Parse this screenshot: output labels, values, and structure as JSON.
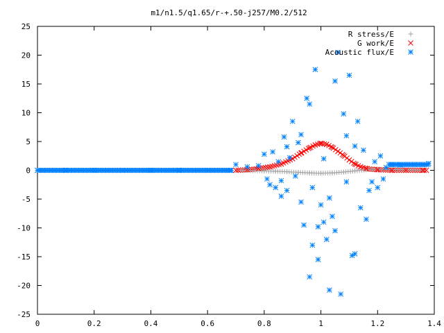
{
  "chart_data": {
    "type": "scatter",
    "title": "m1/n1.5/q1.65/r-+.50-j257/M0.2/512",
    "xlabel": "",
    "ylabel": "",
    "xlim": [
      0,
      1.4
    ],
    "ylim": [
      -25,
      25
    ],
    "x_ticks": [
      "0",
      "0.2",
      "0.4",
      "0.6",
      "0.8",
      "1",
      "1.2",
      "1.4"
    ],
    "y_ticks": [
      "25",
      "20",
      "15",
      "10",
      "5",
      "0",
      "-5",
      "-10",
      "-15",
      "-20",
      "-25"
    ],
    "grid": false,
    "legend_position": "top-right",
    "series": [
      {
        "name": "R stress/E",
        "marker": "plus",
        "color": "#a0a0a0",
        "points": [
          [
            0.72,
            0.0
          ],
          [
            0.76,
            -0.05
          ],
          [
            0.8,
            -0.1
          ],
          [
            0.84,
            -0.15
          ],
          [
            0.88,
            -0.25
          ],
          [
            0.92,
            -0.35
          ],
          [
            0.96,
            -0.45
          ],
          [
            1.0,
            -0.5
          ],
          [
            1.04,
            -0.45
          ],
          [
            1.08,
            -0.3
          ],
          [
            1.12,
            -0.1
          ],
          [
            1.16,
            0.1
          ],
          [
            1.2,
            0.2
          ],
          [
            1.24,
            0.15
          ],
          [
            1.28,
            0.1
          ],
          [
            1.32,
            0.05
          ],
          [
            1.36,
            0.0
          ]
        ]
      },
      {
        "name": "G work/E",
        "marker": "cross",
        "color": "#ff0000",
        "points": [
          [
            0.7,
            0.0
          ],
          [
            0.74,
            0.1
          ],
          [
            0.78,
            0.3
          ],
          [
            0.82,
            0.6
          ],
          [
            0.86,
            1.1
          ],
          [
            0.9,
            2.0
          ],
          [
            0.93,
            3.0
          ],
          [
            0.96,
            3.9
          ],
          [
            0.98,
            4.4
          ],
          [
            1.0,
            4.7
          ],
          [
            1.02,
            4.5
          ],
          [
            1.04,
            4.0
          ],
          [
            1.06,
            3.3
          ],
          [
            1.08,
            2.6
          ],
          [
            1.1,
            1.8
          ],
          [
            1.12,
            1.1
          ],
          [
            1.14,
            0.6
          ],
          [
            1.16,
            0.3
          ],
          [
            1.2,
            0.1
          ],
          [
            1.25,
            0.0
          ],
          [
            1.3,
            0.0
          ],
          [
            1.36,
            0.0
          ]
        ]
      },
      {
        "name": "Acoustic flux/E",
        "marker": "star",
        "color": "#0080ff",
        "points": [
          [
            0.0,
            0.0
          ],
          [
            0.1,
            0.0
          ],
          [
            0.2,
            0.0
          ],
          [
            0.3,
            0.0
          ],
          [
            0.4,
            0.0
          ],
          [
            0.5,
            0.0
          ],
          [
            0.6,
            0.0
          ],
          [
            0.68,
            0.0
          ],
          [
            0.7,
            1.0
          ],
          [
            0.74,
            0.6
          ],
          [
            0.78,
            0.8
          ],
          [
            0.8,
            2.8
          ],
          [
            0.81,
            -1.5
          ],
          [
            0.82,
            -2.5
          ],
          [
            0.83,
            3.2
          ],
          [
            0.84,
            -3.0
          ],
          [
            0.85,
            1.5
          ],
          [
            0.86,
            -4.5
          ],
          [
            0.87,
            5.8
          ],
          [
            0.88,
            -3.5
          ],
          [
            0.89,
            2.2
          ],
          [
            0.9,
            8.5
          ],
          [
            0.91,
            -1.0
          ],
          [
            0.92,
            4.8
          ],
          [
            0.93,
            -5.5
          ],
          [
            0.94,
            -9.5
          ],
          [
            0.95,
            12.5
          ],
          [
            0.96,
            11.5
          ],
          [
            0.97,
            -3.0
          ],
          [
            0.98,
            17.5
          ],
          [
            0.99,
            -15.5
          ],
          [
            1.0,
            -6.0
          ],
          [
            1.01,
            2.0
          ],
          [
            1.02,
            -12.0
          ],
          [
            1.03,
            -4.8
          ],
          [
            1.04,
            -8.0
          ],
          [
            1.05,
            15.5
          ],
          [
            1.06,
            20.5
          ],
          [
            1.07,
            -21.5
          ],
          [
            1.08,
            9.8
          ],
          [
            1.09,
            -2.0
          ],
          [
            1.1,
            16.5
          ],
          [
            1.11,
            -14.8
          ],
          [
            1.12,
            -14.5
          ],
          [
            1.13,
            8.5
          ],
          [
            1.14,
            -6.5
          ],
          [
            1.15,
            3.5
          ],
          [
            1.16,
            -8.5
          ],
          [
            1.17,
            -3.5
          ],
          [
            1.18,
            -2.0
          ],
          [
            1.19,
            1.5
          ],
          [
            1.2,
            -3.0
          ],
          [
            1.21,
            2.5
          ],
          [
            1.22,
            -1.5
          ],
          [
            1.23,
            0.5
          ],
          [
            1.25,
            1.0
          ],
          [
            1.28,
            0.9
          ],
          [
            1.3,
            1.0
          ],
          [
            1.33,
            1.0
          ],
          [
            1.36,
            1.0
          ],
          [
            1.38,
            1.2
          ],
          [
            0.96,
            -18.5
          ],
          [
            1.03,
            -20.8
          ],
          [
            1.01,
            -9.0
          ],
          [
            0.93,
            6.2
          ],
          [
            0.88,
            4.1
          ],
          [
            0.86,
            -1.8
          ],
          [
            1.09,
            6.0
          ],
          [
            1.12,
            4.2
          ],
          [
            1.05,
            -10.5
          ],
          [
            0.97,
            -13.0
          ],
          [
            0.99,
            -9.8
          ]
        ]
      }
    ]
  }
}
